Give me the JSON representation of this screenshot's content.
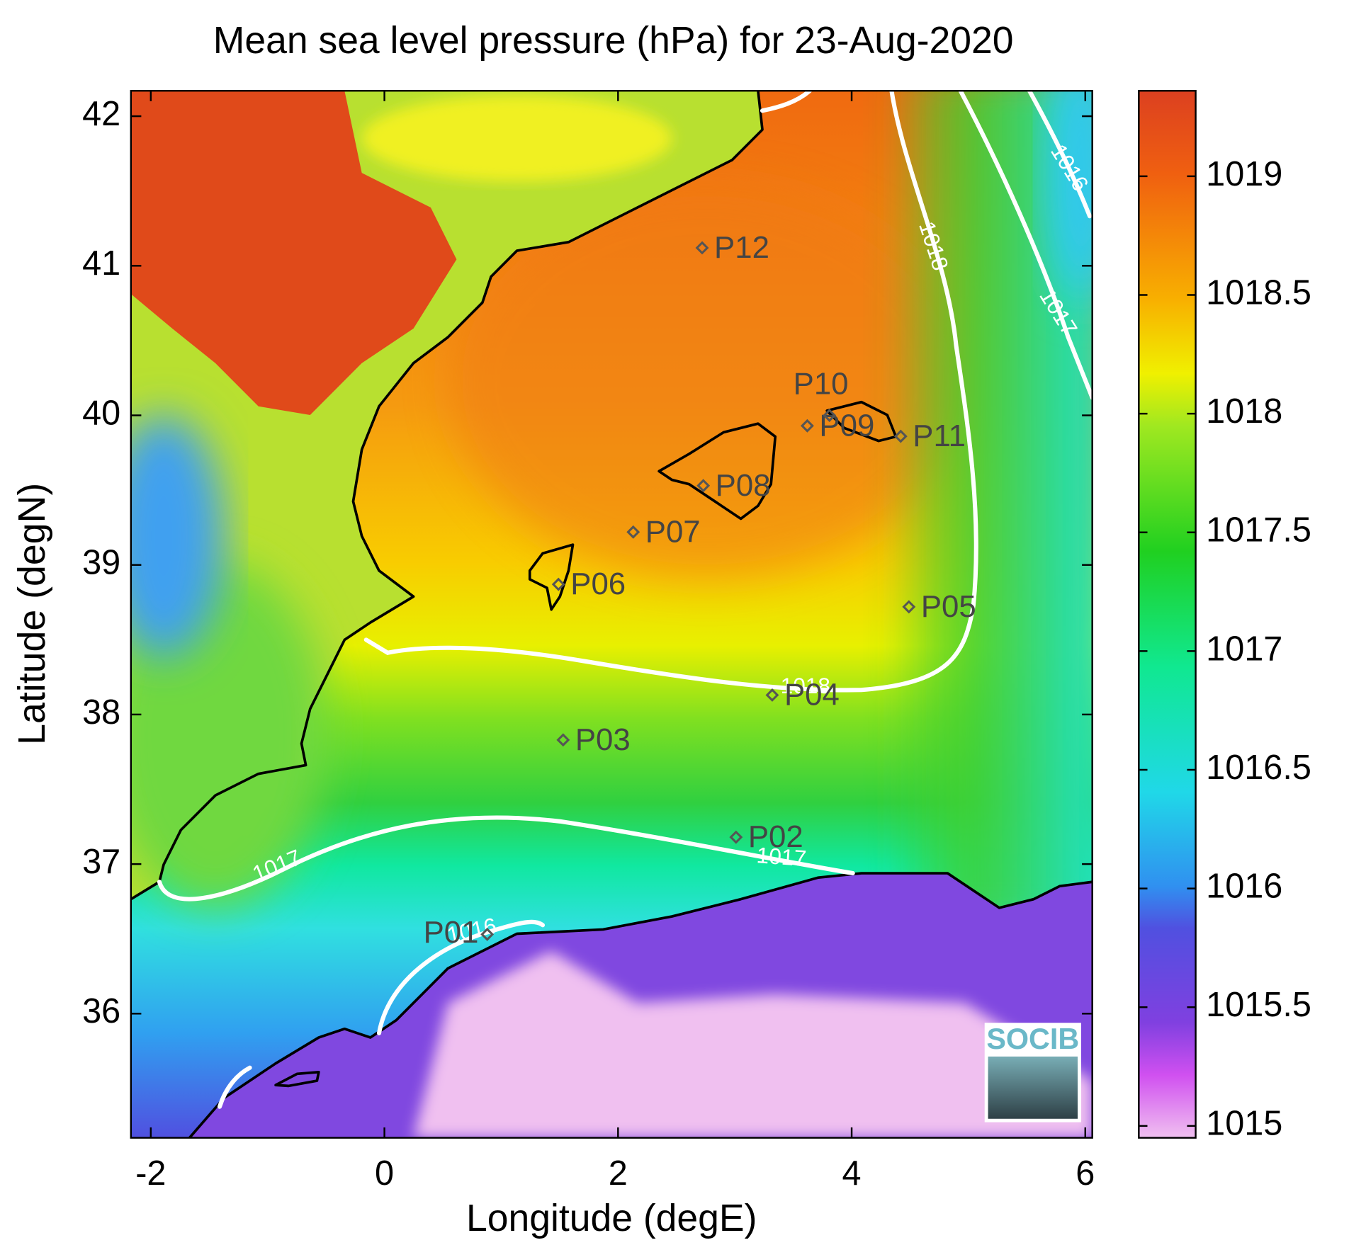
{
  "chart_data": {
    "type": "map",
    "title": "Mean sea level pressure (hPa) for 23-Aug-2020",
    "xlabel": "Longitude (degE)",
    "ylabel": "Latitude (degN)",
    "xlim": [
      -2.17,
      6.06
    ],
    "ylim": [
      35.17,
      42.17
    ],
    "xticks": [
      -2,
      0,
      2,
      4,
      6
    ],
    "yticks": [
      36,
      37,
      38,
      39,
      40,
      41,
      42
    ],
    "colorbar": {
      "lim": [
        1014.95,
        1019.36
      ],
      "ticks": [
        1015,
        1015.5,
        1016,
        1016.5,
        1017,
        1017.5,
        1018,
        1018.5,
        1019
      ]
    },
    "stations": [
      {
        "name": "P01",
        "lon": 0.88,
        "lat": 36.53
      },
      {
        "name": "P02",
        "lon": 3.01,
        "lat": 37.18
      },
      {
        "name": "P03",
        "lon": 1.53,
        "lat": 37.83
      },
      {
        "name": "P04",
        "lon": 3.32,
        "lat": 38.13
      },
      {
        "name": "P05",
        "lon": 4.49,
        "lat": 38.72
      },
      {
        "name": "P06",
        "lon": 1.49,
        "lat": 38.87
      },
      {
        "name": "P07",
        "lon": 2.13,
        "lat": 39.22
      },
      {
        "name": "P08",
        "lon": 2.73,
        "lat": 39.53
      },
      {
        "name": "P09",
        "lon": 3.62,
        "lat": 39.93
      },
      {
        "name": "P10",
        "lon": 3.81,
        "lat": 40.0
      },
      {
        "name": "P11",
        "lon": 4.42,
        "lat": 39.86
      },
      {
        "name": "P12",
        "lon": 2.72,
        "lat": 41.12
      }
    ],
    "contour_labels": [
      1018,
      1018,
      1017,
      1017,
      1017,
      1016,
      1016
    ],
    "logo": "SOCIB"
  }
}
